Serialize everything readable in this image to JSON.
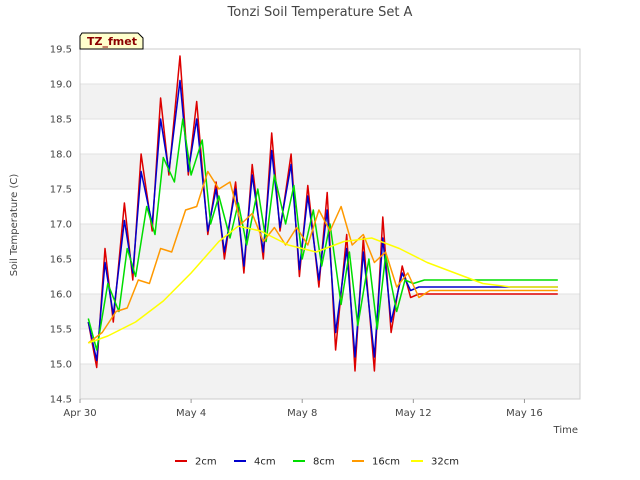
{
  "chart_data": {
    "type": "line",
    "title": "Tonzi Soil Temperature Set A",
    "xlabel": "Time",
    "ylabel": "Soil Temperature (C)",
    "site_label": "TZ_fmet",
    "xlim": [
      0,
      18
    ],
    "ylim": [
      14.5,
      19.5
    ],
    "yticks": [
      14.5,
      15.0,
      15.5,
      16.0,
      16.5,
      17.0,
      17.5,
      18.0,
      18.5,
      19.0,
      19.5
    ],
    "xticks": [
      {
        "day": 0,
        "label": "Apr 30"
      },
      {
        "day": 4,
        "label": "May 4"
      },
      {
        "day": 8,
        "label": "May 8"
      },
      {
        "day": 12,
        "label": "May 12"
      },
      {
        "day": 16,
        "label": "May 16"
      }
    ],
    "background_bands": true,
    "legend_position": "bottom",
    "series": [
      {
        "name": "2cm",
        "color": "#dd0000",
        "x": [
          0.3,
          0.6,
          0.9,
          1.2,
          1.6,
          1.9,
          2.2,
          2.6,
          2.9,
          3.2,
          3.6,
          3.9,
          4.2,
          4.6,
          4.9,
          5.2,
          5.6,
          5.9,
          6.2,
          6.6,
          6.9,
          7.2,
          7.6,
          7.9,
          8.2,
          8.6,
          8.9,
          9.2,
          9.6,
          9.9,
          10.2,
          10.6,
          10.9,
          11.2,
          11.6,
          11.9,
          12.2,
          12.6,
          12.9,
          13.2,
          13.6,
          13.9,
          14.2,
          14.6,
          14.9,
          15.2,
          15.6,
          15.9,
          16.2,
          16.6,
          16.9,
          17.2
        ],
        "values": [
          15.6,
          14.95,
          16.65,
          15.6,
          17.3,
          16.2,
          18.0,
          16.9,
          18.8,
          17.7,
          19.4,
          17.7,
          18.75,
          16.85,
          17.6,
          16.5,
          17.6,
          16.3,
          17.85,
          16.5,
          18.3,
          16.9,
          18.0,
          16.25,
          17.55,
          16.1,
          17.45,
          15.2,
          16.85,
          14.9,
          16.8,
          14.9,
          17.1,
          15.45,
          16.4,
          15.95,
          16.0,
          16.0,
          16.0,
          16.0,
          16.0,
          16.0,
          16.0,
          16.0,
          16.0,
          16.0,
          16.0,
          16.0,
          16.0,
          16.0,
          16.0,
          16.0
        ]
      },
      {
        "name": "4cm",
        "color": "#0000cc",
        "x": [
          0.3,
          0.6,
          0.9,
          1.2,
          1.6,
          1.9,
          2.2,
          2.6,
          2.9,
          3.2,
          3.6,
          3.9,
          4.2,
          4.6,
          4.9,
          5.2,
          5.6,
          5.9,
          6.2,
          6.6,
          6.9,
          7.2,
          7.6,
          7.9,
          8.2,
          8.6,
          8.9,
          9.2,
          9.6,
          9.9,
          10.2,
          10.6,
          10.9,
          11.2,
          11.6,
          11.9,
          12.2,
          12.6,
          12.9,
          13.2,
          13.6,
          13.9,
          14.2,
          14.6,
          14.9,
          15.2,
          15.6,
          15.9,
          16.2,
          16.6,
          16.9,
          17.2
        ],
        "values": [
          15.6,
          15.05,
          16.45,
          15.7,
          17.05,
          16.3,
          17.75,
          17.0,
          18.5,
          17.75,
          19.05,
          17.75,
          18.5,
          16.9,
          17.5,
          16.6,
          17.5,
          16.4,
          17.7,
          16.6,
          18.05,
          16.95,
          17.85,
          16.35,
          17.4,
          16.2,
          17.2,
          15.45,
          16.65,
          15.1,
          16.6,
          15.1,
          16.8,
          15.6,
          16.3,
          16.05,
          16.1,
          16.1,
          16.1,
          16.1,
          16.1,
          16.1,
          16.1,
          16.1,
          16.1,
          16.1,
          16.1,
          16.1,
          16.1,
          16.1,
          16.1,
          16.1
        ]
      },
      {
        "name": "8cm",
        "color": "#00dd00",
        "x": [
          0.3,
          0.6,
          1.0,
          1.4,
          1.7,
          2.0,
          2.4,
          2.7,
          3.0,
          3.4,
          3.7,
          4.0,
          4.4,
          4.7,
          5.0,
          5.4,
          5.7,
          6.0,
          6.4,
          6.7,
          7.0,
          7.4,
          7.7,
          8.0,
          8.4,
          8.7,
          9.0,
          9.4,
          9.7,
          10.0,
          10.4,
          10.7,
          11.0,
          11.4,
          11.7,
          12.0,
          12.4,
          12.7,
          13.0,
          13.4,
          13.7,
          14.0,
          14.4,
          14.7,
          15.0,
          15.4,
          15.7,
          16.0,
          16.4,
          16.7,
          17.0,
          17.2
        ],
        "values": [
          15.65,
          15.2,
          16.15,
          15.75,
          16.65,
          16.25,
          17.25,
          16.85,
          17.95,
          17.6,
          18.5,
          17.7,
          18.2,
          17.0,
          17.4,
          16.8,
          17.3,
          16.7,
          17.5,
          16.75,
          17.7,
          17.0,
          17.55,
          16.5,
          17.2,
          16.4,
          17.0,
          15.85,
          16.6,
          15.55,
          16.5,
          15.5,
          16.55,
          15.75,
          16.2,
          16.15,
          16.2,
          16.2,
          16.2,
          16.2,
          16.2,
          16.2,
          16.2,
          16.2,
          16.2,
          16.2,
          16.2,
          16.2,
          16.2,
          16.2,
          16.2,
          16.2
        ]
      },
      {
        "name": "16cm",
        "color": "#ff9900",
        "x": [
          0.3,
          0.8,
          1.3,
          1.7,
          2.1,
          2.5,
          2.9,
          3.3,
          3.8,
          4.2,
          4.6,
          5.0,
          5.4,
          5.8,
          6.2,
          6.6,
          7.0,
          7.4,
          7.8,
          8.2,
          8.6,
          9.0,
          9.4,
          9.8,
          10.2,
          10.6,
          11.0,
          11.4,
          11.8,
          12.2,
          12.6,
          13.0,
          13.4,
          13.8,
          14.2,
          14.6,
          15.0,
          15.4,
          15.8,
          16.2,
          16.6,
          17.0,
          17.2
        ],
        "values": [
          15.3,
          15.45,
          15.75,
          15.8,
          16.2,
          16.15,
          16.65,
          16.6,
          17.2,
          17.25,
          17.75,
          17.5,
          17.6,
          17.0,
          17.15,
          16.75,
          16.95,
          16.7,
          16.95,
          16.7,
          17.2,
          16.9,
          17.25,
          16.7,
          16.85,
          16.45,
          16.6,
          16.1,
          16.3,
          15.95,
          16.05,
          16.05,
          16.05,
          16.05,
          16.05,
          16.05,
          16.05,
          16.05,
          16.05,
          16.05,
          16.05,
          16.05,
          16.05
        ]
      },
      {
        "name": "32cm",
        "color": "#ffff00",
        "x": [
          0.3,
          1.0,
          2.0,
          3.0,
          4.0,
          5.0,
          5.7,
          6.5,
          7.5,
          8.5,
          9.5,
          10.5,
          11.5,
          12.5,
          13.5,
          14.5,
          15.5,
          16.5,
          17.2
        ],
        "values": [
          15.3,
          15.4,
          15.6,
          15.9,
          16.3,
          16.75,
          16.97,
          16.9,
          16.7,
          16.6,
          16.75,
          16.8,
          16.65,
          16.45,
          16.3,
          16.15,
          16.1,
          16.1,
          16.1
        ]
      }
    ]
  }
}
